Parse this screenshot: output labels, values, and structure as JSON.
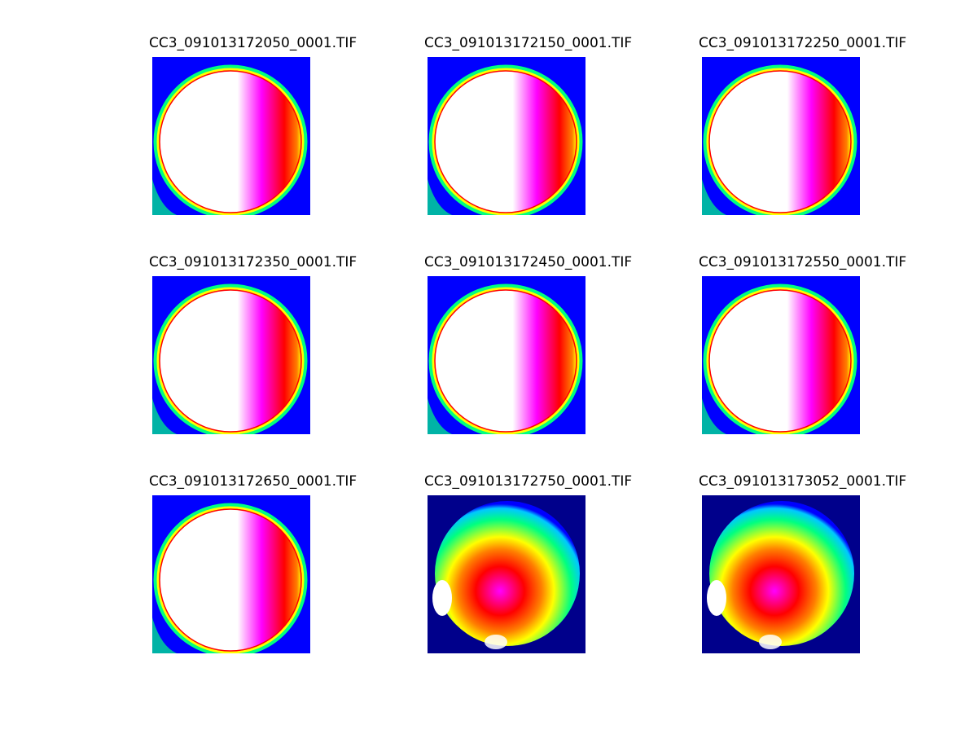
{
  "figure": {
    "panels": [
      {
        "title": "CC3_091013172050_0001.TIF",
        "variant": "saturated"
      },
      {
        "title": "CC3_091013172150_0001.TIF",
        "variant": "saturated"
      },
      {
        "title": "CC3_091013172250_0001.TIF",
        "variant": "saturated"
      },
      {
        "title": "CC3_091013172350_0001.TIF",
        "variant": "saturated"
      },
      {
        "title": "CC3_091013172450_0001.TIF",
        "variant": "saturated"
      },
      {
        "title": "CC3_091013172550_0001.TIF",
        "variant": "saturated"
      },
      {
        "title": "CC3_091013172650_0001.TIF",
        "variant": "saturated"
      },
      {
        "title": "CC3_091013172750_0001.TIF",
        "variant": "gradient"
      },
      {
        "title": "CC3_091013173052_0001.TIF",
        "variant": "gradient"
      }
    ],
    "colormap": [
      "#00008b",
      "#0000ff",
      "#00c8ff",
      "#00ff80",
      "#ffff00",
      "#ff8000",
      "#ff0000",
      "#ff00ff",
      "#ffffff"
    ]
  }
}
